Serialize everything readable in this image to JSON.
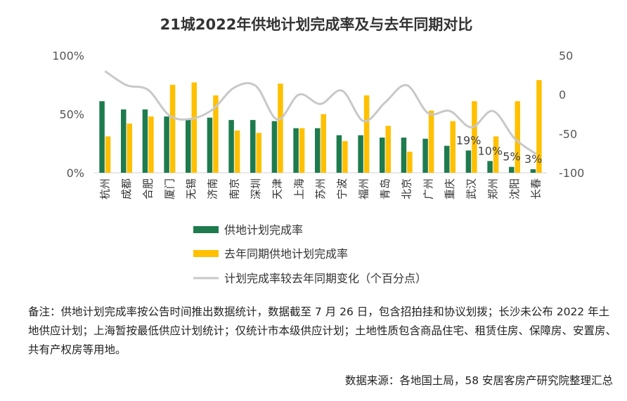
{
  "chart_data": {
    "type": "bar",
    "title": "21城2022年供地计划完成率及与去年同期对比",
    "categories": [
      "杭州",
      "成都",
      "合肥",
      "厦门",
      "无锡",
      "济南",
      "南京",
      "深圳",
      "天津",
      "上海",
      "苏州",
      "宁波",
      "福州",
      "青岛",
      "北京",
      "广州",
      "重庆",
      "武汉",
      "郑州",
      "沈阳",
      "长春"
    ],
    "series": [
      {
        "name": "供地计划完成率",
        "color": "#1E7B4E",
        "axis": "left",
        "values": [
          61,
          54,
          54,
          48,
          46,
          47,
          45,
          45,
          44,
          38,
          38,
          32,
          32,
          30,
          30,
          29,
          23,
          19,
          10,
          5,
          3
        ]
      },
      {
        "name": "去年同期供地计划完成率",
        "color": "#FFC000",
        "axis": "left",
        "values": [
          31,
          42,
          48,
          75,
          77,
          66,
          36,
          34,
          76,
          38,
          50,
          27,
          66,
          40,
          18,
          53,
          44,
          61,
          31,
          61,
          79
        ]
      },
      {
        "name": "计划完成率较去年同期变化（个百分点）",
        "color": "#C8C8C8",
        "axis": "right",
        "type": "line",
        "values": [
          30,
          12,
          6,
          -27,
          -31,
          -19,
          9,
          11,
          -32,
          0,
          -12,
          5,
          -34,
          -10,
          12,
          -24,
          -21,
          -42,
          -21,
          -56,
          -76
        ]
      }
    ],
    "data_labels": [
      {
        "category": "武汉",
        "text": "19%"
      },
      {
        "category": "郑州",
        "text": "10%"
      },
      {
        "category": "沈阳",
        "text": "5%"
      },
      {
        "category": "长春",
        "text": "3%"
      }
    ],
    "y_left": {
      "min": 0,
      "max": 100,
      "ticks": [
        0,
        50,
        100
      ],
      "tick_labels": [
        "0%",
        "50%",
        "100%"
      ]
    },
    "y_right": {
      "min": -100,
      "max": 50,
      "ticks": [
        -100,
        -50,
        0,
        50
      ],
      "tick_labels": [
        "-100",
        "-50",
        "0",
        "50"
      ]
    },
    "legend": {
      "placement": "bottom"
    }
  },
  "note": "备注：供地计划完成率按公告时间推出数据统计，数据截至 7 月 26 日，包含招拍挂和协议划拨；长沙未公布 2022 年土地供应计划；上海暂按最低供应计划统计；仅统计市本级供应计划；土地性质包含商品住宅、租赁住房、保障房、安置房、共有产权房等用地。",
  "source": "数据来源：各地国土局，58 安居客房产研究院整理汇总"
}
